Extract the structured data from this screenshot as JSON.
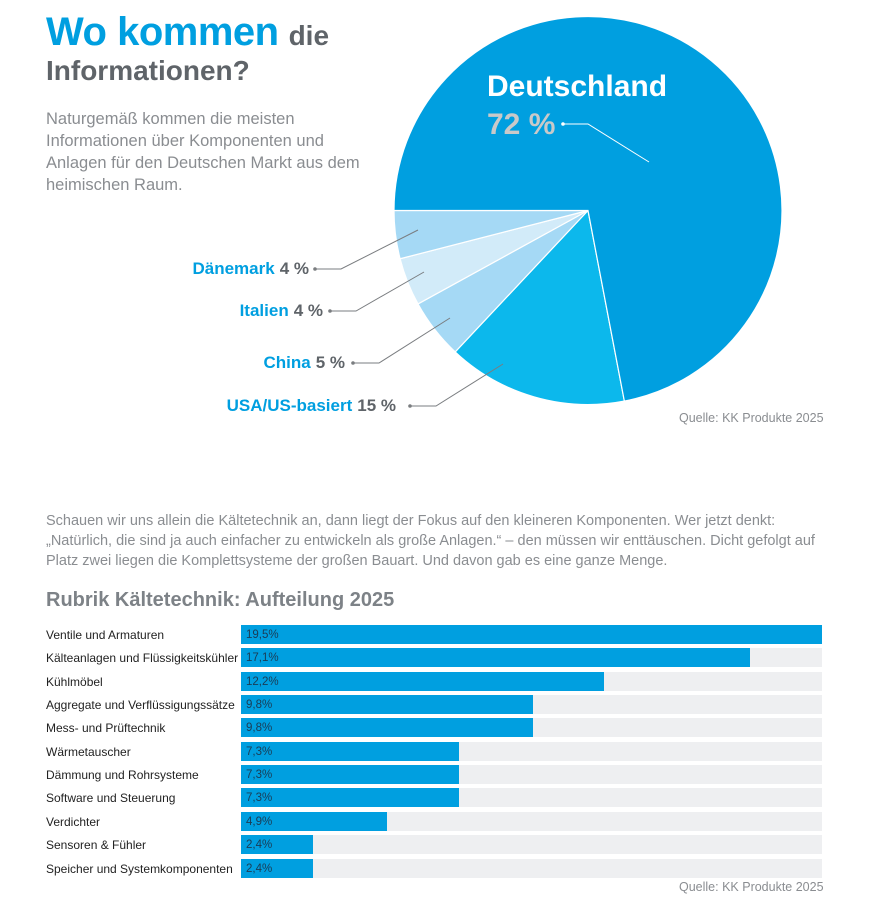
{
  "header": {
    "title_big": "Wo kommen",
    "title_small": "die",
    "title_line2": "Informationen?",
    "intro": "Naturgemäß kommen die meisten Informationen über Komponenten und Anlagen für den Deutschen Markt aus dem heimischen Raum."
  },
  "pie": {
    "source": "Quelle: KK Produkte 2025"
  },
  "section2": {
    "body": "Schauen wir uns allein die Kältetechnik an, dann liegt der Fokus auf den kleineren Komponenten. Wer jetzt denkt: „Natürlich, die sind ja auch einfacher zu entwickeln als große Anlagen.“ – den müssen wir enttäuschen. Dicht gefolgt auf Platz zwei liegen die Komplettsysteme der großen Bauart. Und davon gab es eine ganze Menge.",
    "source": "Quelle: KK Produkte 2025"
  },
  "colors": {
    "accent": "#009fe0",
    "track": "#eeeff1",
    "heading_gray": "#5f6469"
  },
  "chart_data": [
    {
      "type": "pie",
      "title": "Wo kommen die Informationen?",
      "slices": [
        {
          "label": "Deutschland",
          "value": 72,
          "display": "72 %",
          "color": "#009fe0"
        },
        {
          "label": "USA/US-basiert",
          "value": 15,
          "display": "15 %",
          "color": "#0cb8ec"
        },
        {
          "label": "China",
          "value": 5,
          "display": "5 %",
          "color": "#a5d9f5"
        },
        {
          "label": "Italien",
          "value": 4,
          "display": "4 %",
          "color": "#d2ebf9"
        },
        {
          "label": "Dänemark",
          "value": 4,
          "display": "4 %",
          "color": "#a5d9f5"
        }
      ],
      "source": "Quelle: KK Produkte 2025"
    },
    {
      "type": "bar",
      "orientation": "horizontal",
      "title": "Rubrik Kältetechnik: Aufteilung 2025",
      "categories": [
        "Ventile und Armaturen",
        "Kälteanlagen und Flüssigkeitskühler",
        "Kühlmöbel",
        "Aggregate und Verflüssigungssätze",
        "Mess- und Prüftechnik",
        "Wärmetauscher",
        "Dämmung und Rohrsysteme",
        "Software und Steuerung",
        "Verdichter",
        "Sensoren & Fühler",
        "Speicher und Systemkomponenten"
      ],
      "values": [
        19.5,
        17.1,
        12.2,
        9.8,
        9.8,
        7.3,
        7.3,
        7.3,
        4.9,
        2.4,
        2.4
      ],
      "value_labels": [
        "19,5%",
        "17,1%",
        "12,2%",
        "9,8%",
        "9,8%",
        "7,3%",
        "7,3%",
        "7,3%",
        "4,9%",
        "2,4%",
        "2,4%"
      ],
      "xlim": [
        0,
        19.5
      ],
      "unit": "%",
      "grid": false,
      "source": "Quelle: KK Produkte 2025"
    }
  ]
}
